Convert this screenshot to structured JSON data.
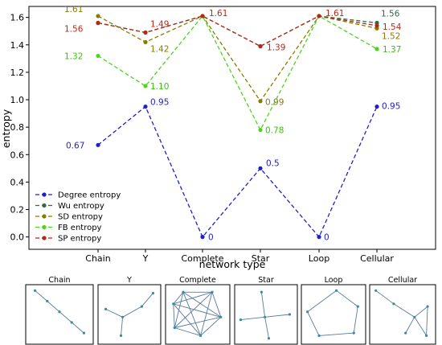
{
  "chart_data": {
    "type": "line",
    "xlabel": "network type",
    "ylabel": "entropy",
    "categories": [
      "Chain",
      "Y",
      "Complete",
      "Star",
      "Loop",
      "Cellular"
    ],
    "ylim": [
      -0.09,
      1.68
    ],
    "yticks": [
      "0.0",
      "0.2",
      "0.4",
      "0.6",
      "0.8",
      "1.0",
      "1.2",
      "1.4",
      "1.6"
    ],
    "legend_position": "lower-left",
    "grid": false,
    "series": [
      {
        "name": "Degree entropy",
        "color": "#1f1fc8",
        "values": [
          0.67,
          0.95,
          0,
          0.5,
          0,
          0.95
        ],
        "labels": [
          "0.67",
          "0.95",
          "0",
          "0.5",
          "0",
          "0.95"
        ],
        "label_color": "#1f1fc8"
      },
      {
        "name": "Wu entropy",
        "color": "#2e6b4e",
        "values": [
          1.56,
          1.49,
          1.61,
          1.39,
          1.61,
          1.56
        ],
        "labels": [
          "",
          "",
          "",
          "",
          "",
          "1.56"
        ],
        "label_color": "#2e6b4e"
      },
      {
        "name": "SD entropy",
        "color": "#8b7a00",
        "values": [
          1.61,
          1.42,
          1.61,
          0.99,
          1.61,
          1.52
        ],
        "labels": [
          "1.61",
          "1.42",
          "",
          "0.99",
          "",
          "1.52"
        ],
        "label_color": "#8b7a00"
      },
      {
        "name": "FB entropy",
        "color": "#4cd420",
        "values": [
          1.32,
          1.1,
          1.61,
          0.78,
          1.61,
          1.37
        ],
        "labels": [
          "1.32",
          "1.10",
          "",
          "0.78",
          "",
          "1.37"
        ],
        "label_color": "#3cc010"
      },
      {
        "name": "SP entropy",
        "color": "#b22a14",
        "values": [
          1.56,
          1.49,
          1.61,
          1.39,
          1.61,
          1.54
        ],
        "labels": [
          "1.56",
          "1.49",
          "1.61",
          "1.39",
          "1.61",
          "1.54"
        ],
        "label_color": "#c0281a"
      }
    ]
  },
  "thumbnails": [
    {
      "title": "Chain"
    },
    {
      "title": "Y"
    },
    {
      "title": "Complete"
    },
    {
      "title": "Star"
    },
    {
      "title": "Loop"
    },
    {
      "title": "Cellular"
    }
  ]
}
